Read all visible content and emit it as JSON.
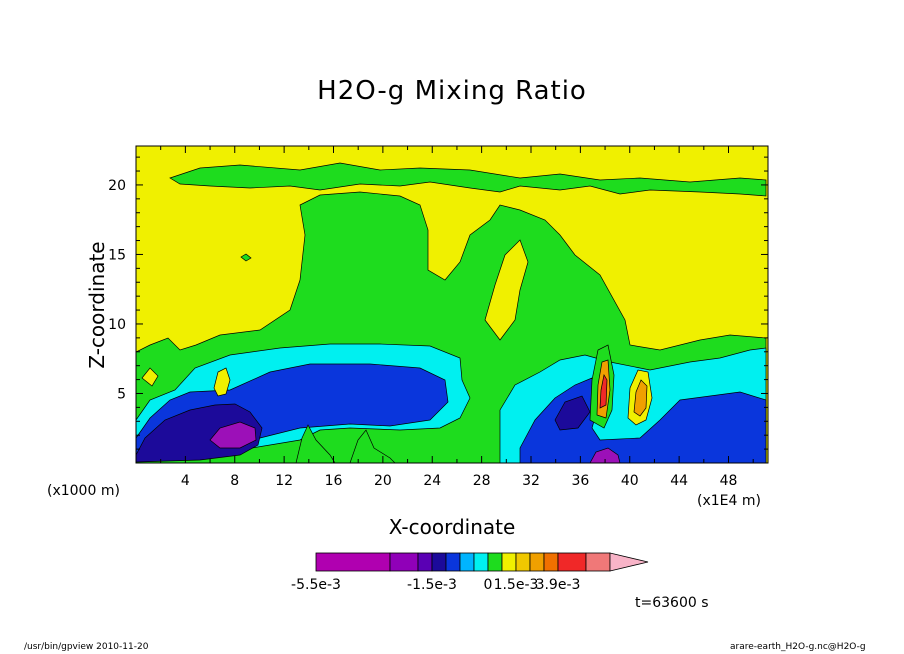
{
  "chart_data": {
    "type": "heatmap",
    "title": "H2O-g Mixing Ratio",
    "xlabel": "X-coordinate",
    "ylabel": "Z-coordinate",
    "x_unit_left": "(x1000 m)",
    "x_unit_right": "(x1E4 m)",
    "x_ticks": [
      "4",
      "8",
      "12",
      "16",
      "20",
      "24",
      "28",
      "32",
      "36",
      "40",
      "44",
      "48"
    ],
    "y_ticks": [
      "5",
      "10",
      "15",
      "20"
    ],
    "xlim": [
      0,
      51.2
    ],
    "ylim": [
      0,
      22.8
    ],
    "colorbar": {
      "labels": [
        "-5.5e-3",
        "-1.5e-3",
        "0",
        "1.5e-3",
        "3.9e-3"
      ],
      "colors": [
        "#b000b0",
        "#9000b8",
        "#5a00b4",
        "#1c0a9a",
        "#0a36dc",
        "#00b4ff",
        "#00f0f0",
        "#1edc1e",
        "#f0f000",
        "#f0c800",
        "#f0a000",
        "#f07000",
        "#f02828",
        "#f07878",
        "#f8b4c8"
      ]
    },
    "level_colors": {
      "deep_purple": "#9c10b8",
      "navy": "#1c0a9a",
      "blue": "#0a36dc",
      "cyan": "#00f0f0",
      "green": "#1edc1e",
      "yellow": "#f0f000",
      "orange": "#f0a000",
      "red": "#f02828"
    }
  },
  "time_label": "t=63600 s",
  "footer": {
    "left": "/usr/bin/gpview  2010-11-20",
    "right": "arare-earth_H2O-g.nc@H2O-g"
  }
}
